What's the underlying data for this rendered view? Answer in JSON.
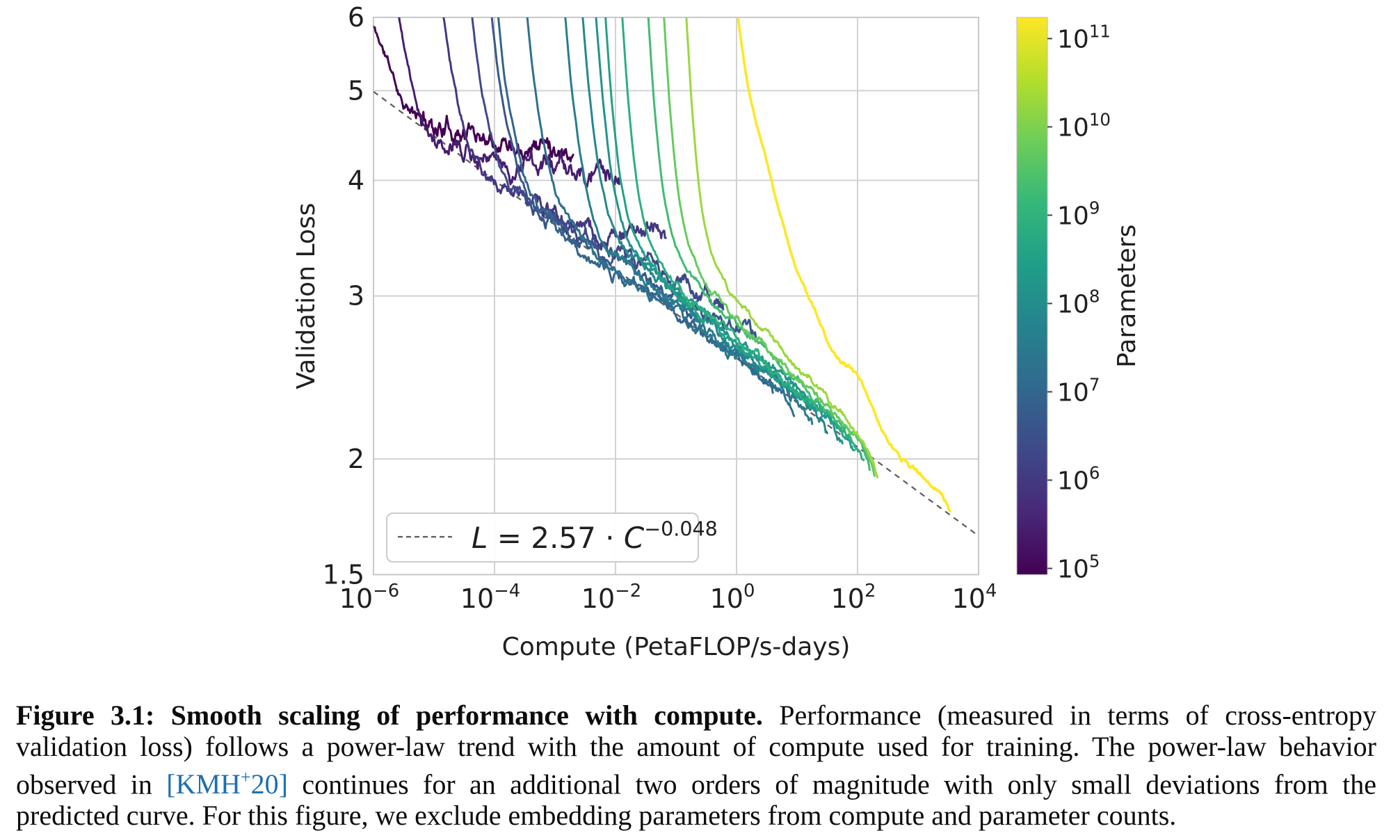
{
  "figure": {
    "kind": "scaling-law-plot",
    "text_color": "#1f1f1f",
    "grid_color": "#d2d2d2",
    "frame_color": "#c8c8c8",
    "background": "#ffffff"
  },
  "chart_data": {
    "type": "line",
    "title": "",
    "xlabel": "Compute (PetaFLOP/s-days)",
    "ylabel": "Validation Loss",
    "x_log_range": [
      -6,
      4
    ],
    "y_range": [
      1.5,
      6
    ],
    "y_scale": "log",
    "x_scale": "log",
    "grid": true,
    "x_tick_exponents": [
      -6,
      -4,
      -2,
      0,
      2,
      4
    ],
    "y_ticks": [
      6,
      5,
      4,
      3,
      2,
      1.5
    ],
    "frontier": {
      "coefficient": 2.57,
      "exponent": -0.048,
      "color": "#5a5a5a",
      "legend_var1": "L",
      "legend_mid": " = 2.57 · ",
      "legend_var2": "C",
      "legend_sup": "−0.048"
    },
    "colorbar": {
      "label": "Parameters",
      "tick_exponents": [
        11,
        10,
        9,
        8,
        7,
        6,
        5
      ],
      "log_min": 4.93,
      "log_max": 11.24,
      "viridis_stops": [
        "#440154",
        "#482878",
        "#3e4989",
        "#31688e",
        "#26828e",
        "#1f9e89",
        "#35b779",
        "#6dcd59",
        "#b4de2c",
        "#fde725"
      ]
    },
    "series": [
      {
        "name": "model-1e5",
        "params_log10": 5.0,
        "color_t": 0.0,
        "noise": 0.013,
        "anchors": [
          [
            -6.0,
            5.86
          ],
          [
            -5.8,
            5.45
          ],
          [
            -5.55,
            4.95
          ],
          [
            -5.3,
            4.68
          ],
          [
            -5.0,
            4.6
          ],
          [
            -4.5,
            4.53
          ],
          [
            -4.0,
            4.48
          ],
          [
            -3.4,
            4.42
          ],
          [
            -2.9,
            4.37
          ],
          [
            -2.7,
            4.35
          ]
        ]
      },
      {
        "name": "model-3e5",
        "params_log10": 5.5,
        "color_t": 0.08,
        "noise": 0.013,
        "anchors": [
          [
            -5.63,
            6.3
          ],
          [
            -5.45,
            5.4
          ],
          [
            -5.25,
            4.8
          ],
          [
            -5.05,
            4.45
          ],
          [
            -4.85,
            4.32
          ],
          [
            -4.4,
            4.25
          ],
          [
            -3.9,
            4.2
          ],
          [
            -3.3,
            4.14
          ],
          [
            -2.7,
            4.08
          ],
          [
            -2.2,
            4.04
          ],
          [
            -1.94,
            4.02
          ]
        ]
      },
      {
        "name": "model-1e6",
        "params_log10": 6.0,
        "color_t": 0.16,
        "noise": 0.013,
        "anchors": [
          [
            -4.89,
            6.3
          ],
          [
            -4.72,
            5.3
          ],
          [
            -4.52,
            4.6
          ],
          [
            -4.32,
            4.2
          ],
          [
            -4.1,
            4.02
          ],
          [
            -3.8,
            3.9
          ],
          [
            -3.4,
            3.78
          ],
          [
            -2.9,
            3.64
          ],
          [
            -2.4,
            3.56
          ],
          [
            -1.9,
            3.51
          ],
          [
            -1.17,
            3.47
          ]
        ]
      },
      {
        "name": "model-2.5e6",
        "params_log10": 6.4,
        "color_t": 0.224,
        "noise": 0.012,
        "anchors": [
          [
            -4.41,
            6.3
          ],
          [
            -4.25,
            5.2
          ],
          [
            -4.05,
            4.45
          ],
          [
            -3.85,
            4.05
          ],
          [
            -3.62,
            3.85
          ],
          [
            -3.3,
            3.7
          ],
          [
            -2.9,
            3.59
          ],
          [
            -2.4,
            3.46
          ],
          [
            -1.9,
            3.33
          ],
          [
            -1.4,
            3.2
          ],
          [
            -0.9,
            3.08
          ],
          [
            -0.5,
            3.0
          ],
          [
            -0.22,
            2.96
          ]
        ]
      },
      {
        "name": "model-5e6",
        "params_log10": 6.7,
        "color_t": 0.272,
        "noise": 0.012,
        "anchors": [
          [
            -4.08,
            6.3
          ],
          [
            -3.92,
            5.15
          ],
          [
            -3.72,
            4.4
          ],
          [
            -3.52,
            3.95
          ],
          [
            -3.3,
            3.75
          ],
          [
            -2.95,
            3.6
          ],
          [
            -2.5,
            3.44
          ],
          [
            -2.0,
            3.28
          ],
          [
            -1.5,
            3.14
          ],
          [
            -1.0,
            3.0
          ],
          [
            -0.5,
            2.87
          ],
          [
            0.0,
            2.77
          ],
          [
            0.32,
            2.72
          ]
        ]
      },
      {
        "name": "model-1e7",
        "params_log10": 7.0,
        "color_t": 0.32,
        "noise": 0.011,
        "anchors": [
          [
            -3.97,
            6.3
          ],
          [
            -3.82,
            5.1
          ],
          [
            -3.63,
            4.35
          ],
          [
            -3.44,
            3.9
          ],
          [
            -3.22,
            3.68
          ],
          [
            -2.85,
            3.5
          ],
          [
            -2.3,
            3.28
          ],
          [
            -1.7,
            3.08
          ],
          [
            -1.1,
            2.9
          ],
          [
            -0.5,
            2.73
          ],
          [
            0.1,
            2.56
          ],
          [
            0.6,
            2.43
          ]
        ]
      },
      {
        "name": "model-2e7",
        "params_log10": 7.3,
        "color_t": 0.369,
        "noise": 0.01,
        "anchors": [
          [
            -3.49,
            6.3
          ],
          [
            -3.34,
            5.1
          ],
          [
            -3.16,
            4.3
          ],
          [
            -2.97,
            3.85
          ],
          [
            -2.75,
            3.6
          ],
          [
            -2.4,
            3.4
          ],
          [
            -1.85,
            3.17
          ],
          [
            -1.25,
            2.96
          ],
          [
            -0.65,
            2.77
          ],
          [
            -0.05,
            2.59
          ],
          [
            0.55,
            2.42
          ],
          [
            0.95,
            2.32
          ]
        ]
      },
      {
        "name": "model-4e7",
        "params_log10": 7.6,
        "color_t": 0.417,
        "noise": 0.01,
        "anchors": [
          [
            -2.86,
            6.3
          ],
          [
            -2.72,
            5.0
          ],
          [
            -2.55,
            4.15
          ],
          [
            -2.37,
            3.65
          ],
          [
            -2.15,
            3.42
          ],
          [
            -1.8,
            3.25
          ],
          [
            -1.25,
            3.03
          ],
          [
            -0.65,
            2.82
          ],
          [
            -0.05,
            2.62
          ],
          [
            0.55,
            2.44
          ],
          [
            1.0,
            2.32
          ],
          [
            1.25,
            2.24
          ]
        ]
      },
      {
        "name": "model-8e7",
        "params_log10": 7.9,
        "color_t": 0.465,
        "noise": 0.009,
        "anchors": [
          [
            -2.57,
            6.3
          ],
          [
            -2.43,
            4.95
          ],
          [
            -2.26,
            4.05
          ],
          [
            -2.08,
            3.6
          ],
          [
            -1.86,
            3.38
          ],
          [
            -1.5,
            3.2
          ],
          [
            -0.95,
            2.98
          ],
          [
            -0.35,
            2.77
          ],
          [
            0.25,
            2.58
          ],
          [
            0.85,
            2.4
          ],
          [
            1.3,
            2.26
          ],
          [
            1.5,
            2.18
          ]
        ]
      },
      {
        "name": "model-1.6e8",
        "params_log10": 8.2,
        "color_t": 0.513,
        "noise": 0.009,
        "anchors": [
          [
            -2.35,
            6.3
          ],
          [
            -2.21,
            4.9
          ],
          [
            -2.05,
            4.0
          ],
          [
            -1.87,
            3.55
          ],
          [
            -1.65,
            3.34
          ],
          [
            -1.3,
            3.16
          ],
          [
            -0.75,
            2.94
          ],
          [
            -0.15,
            2.73
          ],
          [
            0.45,
            2.54
          ],
          [
            1.05,
            2.36
          ],
          [
            1.55,
            2.2
          ],
          [
            1.75,
            2.12
          ]
        ]
      },
      {
        "name": "model-3.5e8",
        "params_log10": 8.55,
        "color_t": 0.569,
        "noise": 0.008,
        "anchors": [
          [
            -2.19,
            6.3
          ],
          [
            -2.06,
            4.85
          ],
          [
            -1.9,
            3.95
          ],
          [
            -1.72,
            3.52
          ],
          [
            -1.5,
            3.3
          ],
          [
            -1.15,
            3.1
          ],
          [
            -0.6,
            2.88
          ],
          [
            0.0,
            2.67
          ],
          [
            0.6,
            2.48
          ],
          [
            1.2,
            2.3
          ],
          [
            1.7,
            2.15
          ],
          [
            1.95,
            2.07
          ]
        ]
      },
      {
        "name": "model-8e8",
        "params_log10": 8.9,
        "color_t": 0.625,
        "noise": 0.007,
        "anchors": [
          [
            -1.91,
            6.3
          ],
          [
            -1.78,
            4.8
          ],
          [
            -1.62,
            3.9
          ],
          [
            -1.45,
            3.48
          ],
          [
            -1.22,
            3.24
          ],
          [
            -0.85,
            3.03
          ],
          [
            -0.3,
            2.81
          ],
          [
            0.3,
            2.6
          ],
          [
            0.9,
            2.4
          ],
          [
            1.5,
            2.22
          ],
          [
            1.95,
            2.09
          ],
          [
            2.1,
            2.03
          ]
        ]
      },
      {
        "name": "model-2e9",
        "params_log10": 9.3,
        "color_t": 0.689,
        "noise": 0.006,
        "anchors": [
          [
            -1.48,
            6.3
          ],
          [
            -1.35,
            4.75
          ],
          [
            -1.2,
            3.85
          ],
          [
            -1.03,
            3.43
          ],
          [
            -0.8,
            3.18
          ],
          [
            -0.4,
            2.95
          ],
          [
            0.2,
            2.71
          ],
          [
            0.8,
            2.49
          ],
          [
            1.4,
            2.29
          ],
          [
            1.9,
            2.13
          ],
          [
            2.15,
            2.04
          ],
          [
            2.2,
            2.0
          ]
        ]
      },
      {
        "name": "model-6e9",
        "params_log10": 9.75,
        "color_t": 0.761,
        "noise": 0.006,
        "anchors": [
          [
            -1.22,
            6.3
          ],
          [
            -1.09,
            4.7
          ],
          [
            -0.94,
            3.8
          ],
          [
            -0.76,
            3.38
          ],
          [
            -0.52,
            3.12
          ],
          [
            -0.1,
            2.88
          ],
          [
            0.5,
            2.63
          ],
          [
            1.1,
            2.41
          ],
          [
            1.7,
            2.22
          ],
          [
            2.1,
            2.07
          ],
          [
            2.28,
            1.97
          ]
        ]
      },
      {
        "name": "model-2e10",
        "params_log10": 10.3,
        "color_t": 0.849,
        "noise": 0.005,
        "anchors": [
          [
            -0.85,
            6.3
          ],
          [
            -0.72,
            4.65
          ],
          [
            -0.57,
            3.72
          ],
          [
            -0.38,
            3.3
          ],
          [
            -0.12,
            3.05
          ],
          [
            0.35,
            2.8
          ],
          [
            0.95,
            2.54
          ],
          [
            1.55,
            2.31
          ],
          [
            2.0,
            2.13
          ],
          [
            2.25,
            2.0
          ],
          [
            2.33,
            1.95
          ]
        ]
      },
      {
        "name": "model-1.75e11",
        "params_log10": 11.24,
        "color_t": 1.0,
        "noise": 0.005,
        "anchors": [
          [
            -0.02,
            6.3
          ],
          [
            0.12,
            5.4
          ],
          [
            0.25,
            4.83
          ],
          [
            0.5,
            4.18
          ],
          [
            0.75,
            3.62
          ],
          [
            1.0,
            3.2
          ],
          [
            1.3,
            2.9
          ],
          [
            1.6,
            2.6
          ],
          [
            2.0,
            2.45
          ],
          [
            2.55,
            2.07
          ],
          [
            3.05,
            1.92
          ],
          [
            3.45,
            1.81
          ],
          [
            3.53,
            1.79
          ]
        ]
      }
    ]
  },
  "caption": {
    "line1_bold": "Figure 3.1: Smooth scaling of performance with compute.",
    "line1_rest": "  Performance (measured in terms of cross-entropy",
    "line2": "validation loss) follows a power-law trend with the amount of compute used for training. The power-law behavior",
    "line3_pre": "observed in ",
    "line3_cite_open": "[KMH",
    "line3_cite_sup": "+",
    "line3_cite_close": "20]",
    "line3_post": " continues for an additional two orders of magnitude with only small deviations from the",
    "line4": "predicted curve. For this figure, we exclude embedding parameters from compute and parameter counts.",
    "cite_color": "#1d6fb0"
  }
}
